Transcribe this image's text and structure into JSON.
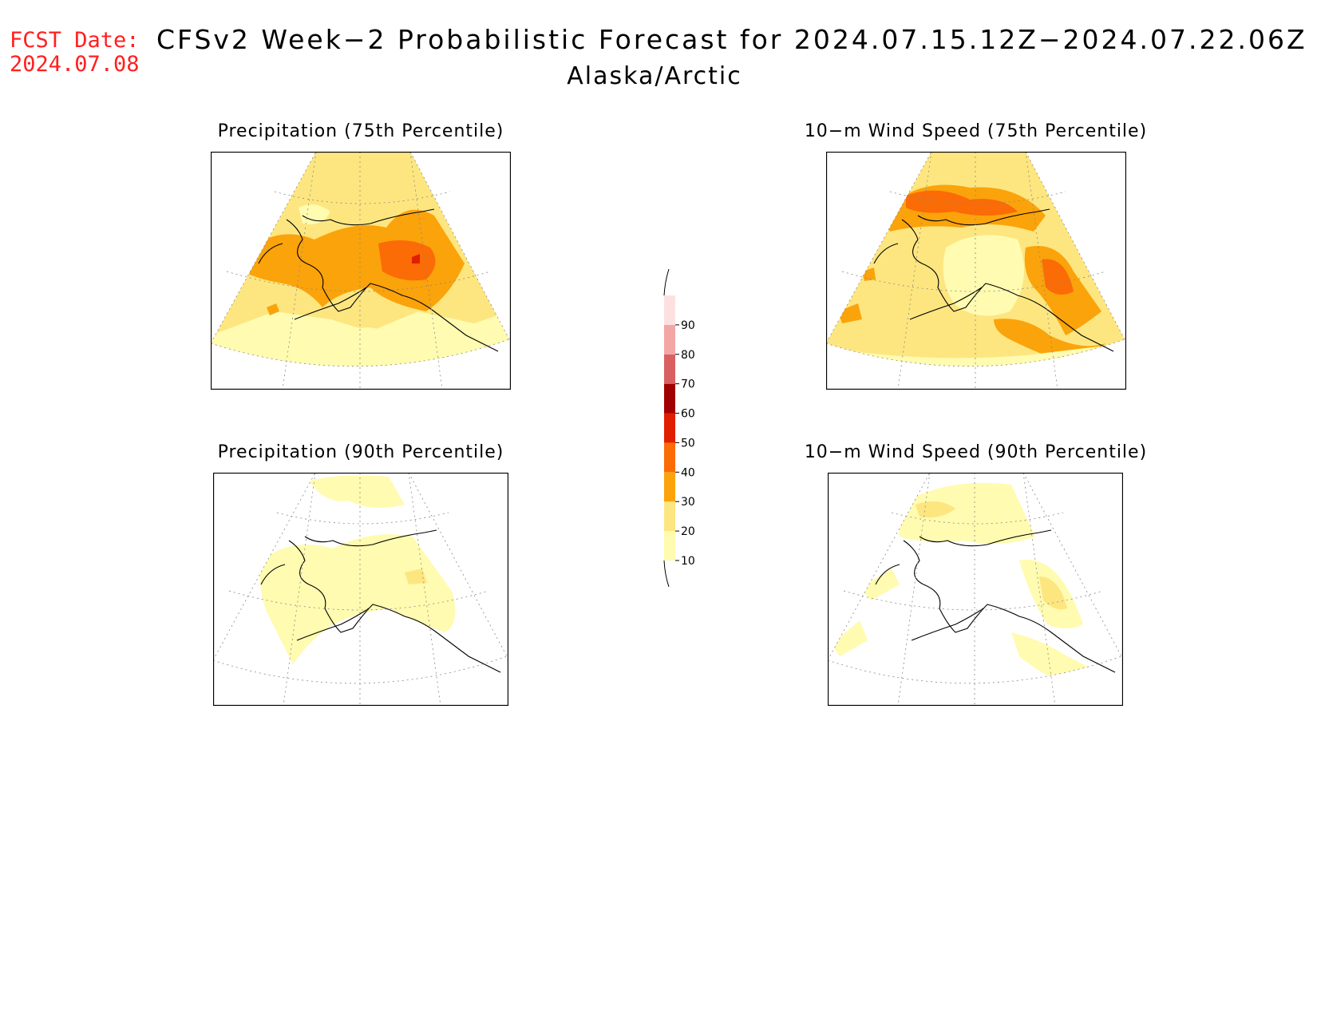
{
  "header": {
    "fcst_label": "FCST Date:",
    "fcst_date": "2024.07.08",
    "title": "CFSv2 Week−2 Probabilistic Forecast for 2024.07.15.12Z−2024.07.22.06Z",
    "subtitle": "Alaska/Arctic"
  },
  "panels": [
    {
      "title": "Precipitation (75th Percentile)"
    },
    {
      "title": "10−m Wind Speed (75th Percentile)"
    },
    {
      "title": "Precipitation (90th Percentile)"
    },
    {
      "title": "10−m Wind Speed (90th Percentile)"
    }
  ],
  "colorbar": {
    "levels": [
      "10",
      "20",
      "30",
      "40",
      "50",
      "60",
      "70",
      "80",
      "90"
    ],
    "colors": [
      "#fffbb0",
      "#fde680",
      "#fba30a",
      "#fb6b06",
      "#e01e00",
      "#a10000",
      "#d96060",
      "#f2a6a6",
      "#fde1e1"
    ]
  },
  "palette": {
    "p10": "#fffbb0",
    "p20": "#fde680",
    "p30": "#fba30a",
    "p40": "#fb6b06",
    "p50": "#e01e00"
  }
}
